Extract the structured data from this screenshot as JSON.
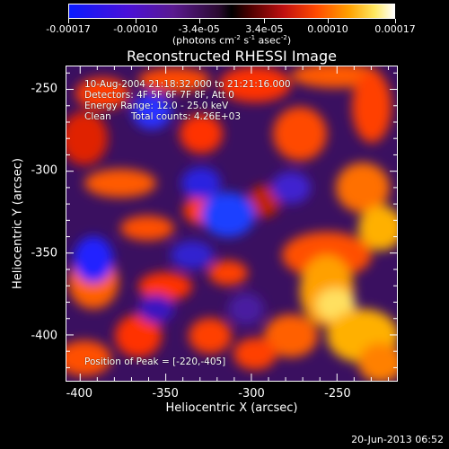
{
  "colorbar": {
    "tick_labels": [
      "-0.00017",
      "-0.00010",
      "-3.4e-05",
      "3.4e-05",
      "0.00010",
      "0.00017"
    ],
    "tick_values": [
      -0.00017,
      -0.0001,
      -3.4e-05,
      3.4e-05,
      0.0001,
      0.00017
    ],
    "units_prefix": "(photons cm",
    "units_exp1": "-2",
    "units_mid": " s",
    "units_exp2": "-1",
    "units_mid2": " asec",
    "units_exp3": "-2",
    "units_suffix": ")"
  },
  "chart_data": {
    "type": "heatmap",
    "title": "Reconstructed RHESSI Image",
    "xlabel": "Heliocentric X (arcsec)",
    "ylabel": "Heliocentric Y (arcsec)",
    "xlim": [
      -408,
      -215
    ],
    "ylim": [
      -428,
      -236
    ],
    "x_ticks": [
      -400,
      -350,
      -300,
      -250
    ],
    "x_tick_labels": [
      "-400",
      "-350",
      "-300",
      "-250"
    ],
    "y_ticks": [
      -250,
      -300,
      -350,
      -400
    ],
    "y_tick_labels": [
      "-250",
      "-300",
      "-350",
      "-400"
    ],
    "clim": [
      -0.00017,
      0.00017
    ],
    "colormap": "blue-purple-black-red-orange-yellow-white",
    "peak_position": [
      -220,
      -405
    ],
    "annotations": {
      "time_range": "10-Aug-2004 21:18:32.000 to 21:21:16.000",
      "detectors": "Detectors: 4F 5F 6F 7F 8F, Att 0",
      "energy": "Energy Range: 12.0 - 25.0 keV",
      "method": "Clean",
      "counts": "Total counts: 4.26E+03",
      "peak": "Position of Peak = [-220,-405]"
    }
  },
  "footer": {
    "date": "20-Jun-2013 06:52"
  }
}
